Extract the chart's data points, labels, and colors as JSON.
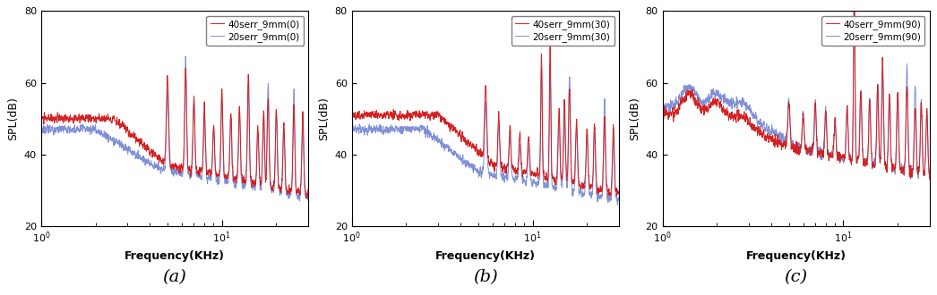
{
  "panels": [
    {
      "label": "(a)",
      "legend1": "40serr_9mm(0)",
      "legend2": "20serr_9mm(0)"
    },
    {
      "label": "(b)",
      "legend1": "40serr_9mm(30)",
      "legend2": "20serr_9mm(30)"
    },
    {
      "label": "(c)",
      "legend1": "40serr_9mm(90)",
      "legend2": "20serr_9mm(90)"
    }
  ],
  "color_red": "#d42020",
  "color_blue": "#8090d8",
  "freq_start": 1.0,
  "freq_end": 30.0,
  "xlim": [
    1.0,
    30.0
  ],
  "ylim": [
    20,
    80
  ],
  "yticks": [
    20,
    40,
    60,
    80
  ],
  "xlabel": "Frequency(KHz)",
  "ylabel": "SPL(dB)",
  "label_fontsize": 9,
  "legend_fontsize": 7.5,
  "tick_fontsize": 8,
  "sublabel_fontsize": 14,
  "linewidth": 0.7
}
